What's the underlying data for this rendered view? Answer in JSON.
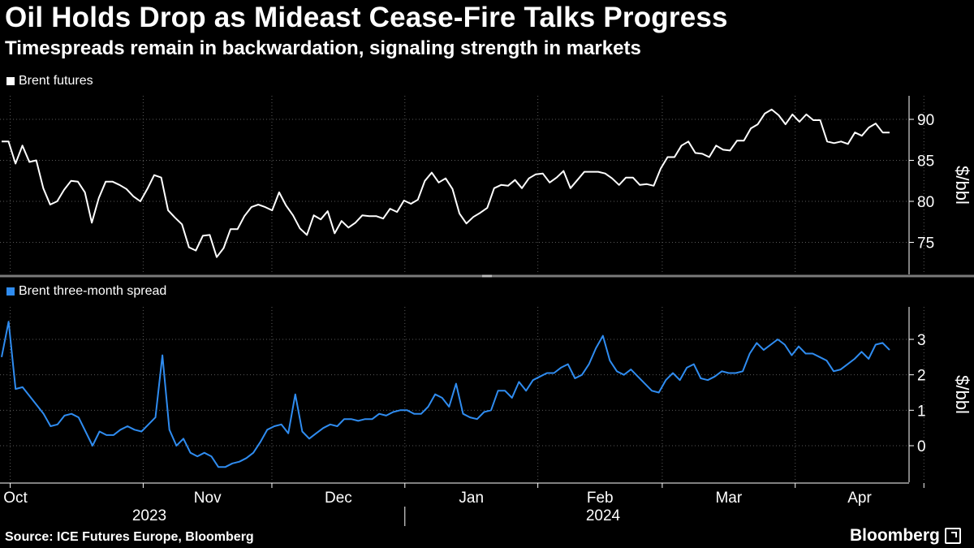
{
  "header": {
    "title": "Oil Holds Drop as Mideast Cease-Fire Talks Progress",
    "subtitle": "Timespreads remain in backwardation, signaling strength in markets"
  },
  "footer": {
    "source": "Source: ICE Futures Europe, Bloomberg",
    "brand": "Bloomberg"
  },
  "colors": {
    "background": "#000000",
    "brent": "#ffffff",
    "spread": "#2f8cf0",
    "grid": "#5a5a5a"
  },
  "chart_data": [
    {
      "type": "line",
      "legend": "Brent futures",
      "ylabel": "$/bbl",
      "ylim": [
        71.5,
        93
      ],
      "yticks": [
        75,
        80,
        85,
        90
      ],
      "ytick_labels": [
        "75",
        "80",
        "85",
        "90"
      ],
      "grid": true,
      "x_start": "2023-09-29",
      "x_end": "2024-04-23",
      "series": [
        {
          "name": "Brent futures",
          "values": [
            87.3,
            87.3,
            84.6,
            86.8,
            84.8,
            85.0,
            81.6,
            79.6,
            80.0,
            81.4,
            82.5,
            82.4,
            81.1,
            77.4,
            80.4,
            82.4,
            82.4,
            82.0,
            81.5,
            80.6,
            80.0,
            81.5,
            83.2,
            82.9,
            78.9,
            78.0,
            77.2,
            74.4,
            74.0,
            75.8,
            75.9,
            73.2,
            74.3,
            76.6,
            76.6,
            78.2,
            79.3,
            79.6,
            79.3,
            78.9,
            81.1,
            79.5,
            78.3,
            76.7,
            75.9,
            78.3,
            77.8,
            78.8,
            76.1,
            77.6,
            76.8,
            77.4,
            78.3,
            78.2,
            78.2,
            77.9,
            79.1,
            78.7,
            80.1,
            79.7,
            80.2,
            82.5,
            83.5,
            82.3,
            82.8,
            81.5,
            78.5,
            77.3,
            78.1,
            78.6,
            79.2,
            81.6,
            82.0,
            81.9,
            82.6,
            81.6,
            82.8,
            83.3,
            83.4,
            82.3,
            82.9,
            83.7,
            81.6,
            82.6,
            83.6,
            83.6,
            83.6,
            83.4,
            82.8,
            82.0,
            82.9,
            82.9,
            82.0,
            82.1,
            81.9,
            84.0,
            85.4,
            85.4,
            86.8,
            87.3,
            85.9,
            85.8,
            85.4,
            86.8,
            86.3,
            86.2,
            87.4,
            87.4,
            88.9,
            89.4,
            90.7,
            91.2,
            90.5,
            89.4,
            90.6,
            89.7,
            90.6,
            89.9,
            89.9,
            87.3,
            87.1,
            87.3,
            87.0,
            88.4,
            88.0,
            89.0,
            89.5,
            88.4,
            88.4
          ]
        }
      ]
    },
    {
      "type": "line",
      "legend": "Brent three-month spread",
      "ylabel": "$/bbl",
      "ylim": [
        -1.05,
        3.95
      ],
      "yticks": [
        0,
        1,
        2,
        3
      ],
      "ytick_labels": [
        "0",
        "1",
        "2",
        "3"
      ],
      "grid": true,
      "x_start": "2023-09-29",
      "x_end": "2024-04-23",
      "series": [
        {
          "name": "Brent three-month spread",
          "values": [
            2.5,
            3.5,
            1.6,
            1.65,
            1.4,
            1.15,
            0.9,
            0.55,
            0.6,
            0.85,
            0.9,
            0.8,
            0.4,
            0.0,
            0.4,
            0.3,
            0.3,
            0.45,
            0.55,
            0.45,
            0.4,
            0.6,
            0.8,
            2.55,
            0.45,
            0.0,
            0.2,
            -0.2,
            -0.3,
            -0.2,
            -0.3,
            -0.6,
            -0.6,
            -0.5,
            -0.45,
            -0.35,
            -0.2,
            0.1,
            0.45,
            0.55,
            0.6,
            0.35,
            1.45,
            0.4,
            0.2,
            0.35,
            0.5,
            0.6,
            0.55,
            0.75,
            0.75,
            0.7,
            0.75,
            0.75,
            0.9,
            0.85,
            0.95,
            1.0,
            1.0,
            0.9,
            0.9,
            1.1,
            1.45,
            1.35,
            1.1,
            1.75,
            0.9,
            0.8,
            0.75,
            0.95,
            1.0,
            1.55,
            1.55,
            1.35,
            1.8,
            1.55,
            1.85,
            1.95,
            2.05,
            2.05,
            2.2,
            2.3,
            1.9,
            2.0,
            2.3,
            2.75,
            3.1,
            2.4,
            2.1,
            2.0,
            2.15,
            1.95,
            1.75,
            1.55,
            1.5,
            1.85,
            2.05,
            1.85,
            2.2,
            2.3,
            1.9,
            1.85,
            1.95,
            2.1,
            2.05,
            2.05,
            2.1,
            2.6,
            2.9,
            2.7,
            2.85,
            3.0,
            2.85,
            2.55,
            2.8,
            2.6,
            2.6,
            2.5,
            2.4,
            2.1,
            2.15,
            2.3,
            2.45,
            2.65,
            2.45,
            2.85,
            2.9,
            2.7
          ]
        }
      ]
    }
  ],
  "x_axis": {
    "month_labels": [
      "Oct",
      "Nov",
      "Dec",
      "Jan",
      "Feb",
      "Mar",
      "Apr"
    ],
    "year_labels": [
      "2023",
      "2024"
    ],
    "gridline_dates": [
      "2023-10-01",
      "2023-11-01",
      "2023-12-01",
      "2024-01-01",
      "2024-02-01",
      "2024-03-01",
      "2024-04-01",
      "2024-05-01"
    ],
    "label_dates": [
      "2023-10-01",
      "2023-11-01",
      "2023-12-01",
      "2024-01-01",
      "2024-02-01",
      "2024-03-01",
      "2024-04-01"
    ]
  }
}
